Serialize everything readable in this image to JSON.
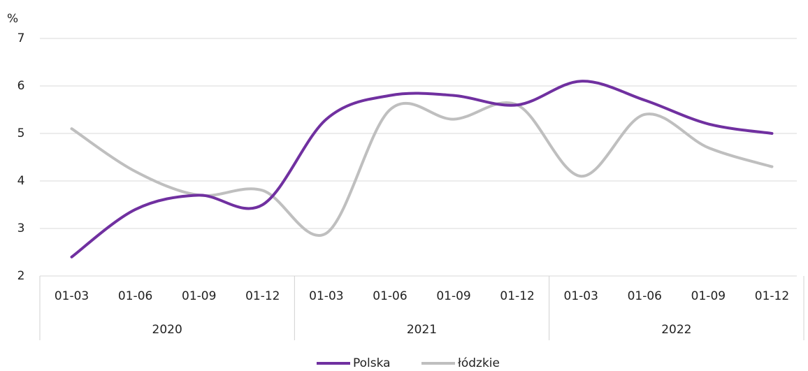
{
  "chart_data": {
    "type": "line",
    "y_label": "%",
    "categories": [
      "01-03",
      "01-06",
      "01-09",
      "01-12",
      "01-03",
      "01-06",
      "01-09",
      "01-12",
      "01-03",
      "01-06",
      "01-09",
      "01-12"
    ],
    "category_groups": [
      "2020",
      "2021",
      "2022"
    ],
    "series": [
      {
        "name": "Polska",
        "color": "#7030a0",
        "values": [
          2.4,
          3.4,
          3.7,
          3.5,
          5.3,
          5.8,
          5.8,
          5.6,
          6.1,
          5.7,
          5.2,
          5.0
        ]
      },
      {
        "name": "łódzkie",
        "color": "#bfbfbf",
        "values": [
          5.1,
          4.2,
          3.7,
          3.8,
          2.9,
          5.5,
          5.3,
          5.6,
          4.1,
          5.4,
          4.7,
          4.3
        ]
      }
    ],
    "ylim": [
      2,
      7
    ],
    "yticks": [
      2,
      3,
      4,
      5,
      6,
      7
    ],
    "grid": true,
    "smooth": true,
    "legend": "bottom"
  }
}
